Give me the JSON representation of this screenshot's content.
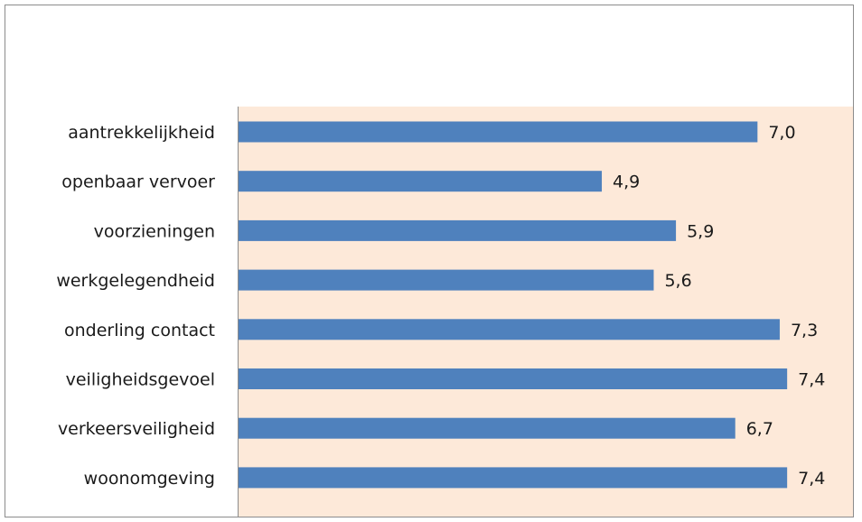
{
  "chart_data": {
    "type": "bar",
    "orientation": "horizontal",
    "categories": [
      "aantrekkelijkheid",
      "openbaar vervoer",
      "voorzieningen",
      "werkgelegendheid",
      "onderling contact",
      "veiligheidsgevoel",
      "verkeersveiligheid",
      "woonomgeving"
    ],
    "values": [
      7.0,
      4.9,
      5.9,
      5.6,
      7.3,
      7.4,
      6.7,
      7.4
    ],
    "value_labels": [
      "7,0",
      "4,9",
      "5,9",
      "5,6",
      "7,3",
      "7,4",
      "6,7",
      "7,4"
    ],
    "xlim": [
      0,
      8.3
    ],
    "grid": false,
    "legend": "none",
    "title": "",
    "xlabel": "",
    "ylabel": "",
    "colors": {
      "bar": "#4f81bd",
      "plot_background": "#fde9d9",
      "axis": "#8c8c8c"
    }
  }
}
